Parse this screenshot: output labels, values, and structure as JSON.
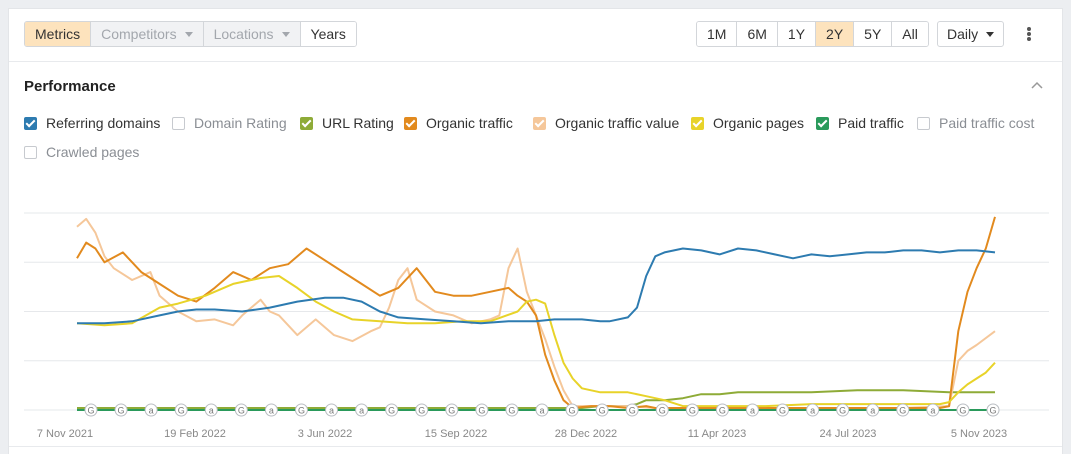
{
  "toolbar": {
    "tabs": [
      {
        "label": "Metrics",
        "state": "active",
        "caret": false
      },
      {
        "label": "Competitors",
        "state": "disabled",
        "caret": true
      },
      {
        "label": "Locations",
        "state": "disabled",
        "caret": true
      },
      {
        "label": "Years",
        "state": "normal",
        "caret": false
      }
    ],
    "ranges": [
      {
        "label": "1M",
        "active": false
      },
      {
        "label": "6M",
        "active": false
      },
      {
        "label": "1Y",
        "active": false
      },
      {
        "label": "2Y",
        "active": true
      },
      {
        "label": "5Y",
        "active": false
      },
      {
        "label": "All",
        "active": false
      }
    ],
    "interval": "Daily"
  },
  "section": {
    "title": "Performance"
  },
  "legend": [
    {
      "label": "Referring domains",
      "checked": true,
      "color": "#2d7bb0"
    },
    {
      "label": "Domain Rating",
      "checked": false,
      "color": "#c7cacf"
    },
    {
      "label": "URL Rating",
      "checked": true,
      "color": "#8eab37"
    },
    {
      "label": "Organic traffic",
      "checked": true,
      "color": "#e28a1e"
    },
    {
      "label": "Organic traffic value",
      "checked": true,
      "color": "#f5c79a"
    },
    {
      "label": "Organic pages",
      "checked": true,
      "color": "#e8d329"
    },
    {
      "label": "Paid traffic",
      "checked": true,
      "color": "#2a9a5b"
    },
    {
      "label": "Paid traffic cost",
      "checked": false,
      "color": "#c7cacf"
    },
    {
      "label": "Crawled pages",
      "checked": false,
      "color": "#c7cacf"
    }
  ],
  "chart_data": {
    "type": "line",
    "x_ticks": [
      "7 Nov 2021",
      "19 Feb 2022",
      "3 Jun 2022",
      "15 Sep 2022",
      "28 Dec 2022",
      "11 Apr 2023",
      "24 Jul 2023",
      "5 Nov 2023"
    ],
    "y_range": [
      0,
      100
    ],
    "grid": true,
    "series": [
      {
        "name": "Referring domains",
        "color": "#2d7bb0",
        "values": [
          [
            0,
            44
          ],
          [
            3,
            44
          ],
          [
            6,
            45
          ],
          [
            9,
            48
          ],
          [
            11,
            50
          ],
          [
            13,
            51
          ],
          [
            15,
            51
          ],
          [
            18,
            50
          ],
          [
            21,
            52
          ],
          [
            24,
            55
          ],
          [
            27,
            57
          ],
          [
            29,
            57
          ],
          [
            31,
            55
          ],
          [
            33,
            50
          ],
          [
            35,
            47
          ],
          [
            38,
            46
          ],
          [
            41,
            45
          ],
          [
            44,
            44
          ],
          [
            47,
            45
          ],
          [
            50,
            45
          ],
          [
            52,
            46
          ],
          [
            55,
            46
          ],
          [
            57,
            45
          ],
          [
            58,
            45
          ],
          [
            60,
            47
          ],
          [
            61,
            52
          ],
          [
            62,
            68
          ],
          [
            63,
            78
          ],
          [
            64,
            80
          ],
          [
            66,
            82
          ],
          [
            68,
            81
          ],
          [
            70,
            79
          ],
          [
            72,
            82
          ],
          [
            74,
            81
          ],
          [
            76,
            79
          ],
          [
            78,
            77
          ],
          [
            80,
            79
          ],
          [
            82,
            78
          ],
          [
            84,
            79
          ],
          [
            86,
            80
          ],
          [
            88,
            80
          ],
          [
            90,
            81
          ],
          [
            92,
            81
          ],
          [
            94,
            80
          ],
          [
            96,
            81
          ],
          [
            98,
            81
          ],
          [
            100,
            80
          ]
        ]
      },
      {
        "name": "URL Rating",
        "color": "#8eab37",
        "values": [
          [
            0,
            1
          ],
          [
            20,
            1
          ],
          [
            40,
            1
          ],
          [
            50,
            1
          ],
          [
            55,
            1
          ],
          [
            57,
            2
          ],
          [
            60,
            2
          ],
          [
            61,
            3
          ],
          [
            62,
            5
          ],
          [
            64,
            5
          ],
          [
            66,
            6
          ],
          [
            68,
            8
          ],
          [
            70,
            8
          ],
          [
            72,
            9
          ],
          [
            75,
            9
          ],
          [
            80,
            9
          ],
          [
            85,
            10
          ],
          [
            90,
            10
          ],
          [
            95,
            9
          ],
          [
            100,
            9
          ]
        ]
      },
      {
        "name": "Organic traffic",
        "color": "#e28a1e",
        "values": [
          [
            0,
            77
          ],
          [
            1,
            85
          ],
          [
            2,
            82
          ],
          [
            3,
            75
          ],
          [
            5,
            80
          ],
          [
            7,
            70
          ],
          [
            9,
            64
          ],
          [
            11,
            58
          ],
          [
            13,
            55
          ],
          [
            15,
            62
          ],
          [
            17,
            70
          ],
          [
            19,
            66
          ],
          [
            21,
            72
          ],
          [
            23,
            74
          ],
          [
            25,
            82
          ],
          [
            27,
            76
          ],
          [
            29,
            70
          ],
          [
            31,
            64
          ],
          [
            33,
            58
          ],
          [
            35,
            62
          ],
          [
            37,
            72
          ],
          [
            39,
            60
          ],
          [
            41,
            58
          ],
          [
            43,
            58
          ],
          [
            45,
            60
          ],
          [
            47,
            62
          ],
          [
            48,
            58
          ],
          [
            49,
            55
          ],
          [
            50,
            48
          ],
          [
            51,
            28
          ],
          [
            52,
            15
          ],
          [
            53,
            5
          ],
          [
            54,
            1
          ],
          [
            56,
            2
          ],
          [
            58,
            2
          ],
          [
            60,
            1
          ],
          [
            62,
            2
          ],
          [
            63,
            1
          ],
          [
            64,
            1
          ],
          [
            70,
            1
          ],
          [
            80,
            1
          ],
          [
            90,
            1
          ],
          [
            94,
            1
          ],
          [
            95,
            2
          ],
          [
            96,
            40
          ],
          [
            97,
            60
          ],
          [
            98,
            72
          ],
          [
            99,
            82
          ],
          [
            100,
            98
          ]
        ]
      },
      {
        "name": "Organic traffic value",
        "color": "#f5c79a",
        "values": [
          [
            0,
            93
          ],
          [
            1,
            97
          ],
          [
            2,
            90
          ],
          [
            3,
            78
          ],
          [
            4,
            72
          ],
          [
            6,
            66
          ],
          [
            8,
            70
          ],
          [
            9,
            58
          ],
          [
            11,
            50
          ],
          [
            13,
            45
          ],
          [
            15,
            46
          ],
          [
            17,
            43
          ],
          [
            18,
            48
          ],
          [
            20,
            56
          ],
          [
            21,
            50
          ],
          [
            22,
            48
          ],
          [
            24,
            38
          ],
          [
            26,
            46
          ],
          [
            28,
            38
          ],
          [
            30,
            35
          ],
          [
            32,
            40
          ],
          [
            33,
            42
          ],
          [
            34,
            52
          ],
          [
            35,
            66
          ],
          [
            36,
            72
          ],
          [
            37,
            56
          ],
          [
            39,
            50
          ],
          [
            41,
            48
          ],
          [
            43,
            44
          ],
          [
            45,
            46
          ],
          [
            46,
            48
          ],
          [
            47,
            72
          ],
          [
            48,
            82
          ],
          [
            49,
            60
          ],
          [
            50,
            48
          ],
          [
            51,
            36
          ],
          [
            52,
            22
          ],
          [
            53,
            10
          ],
          [
            54,
            2
          ],
          [
            60,
            2
          ],
          [
            63,
            1
          ],
          [
            70,
            1
          ],
          [
            80,
            1
          ],
          [
            90,
            1
          ],
          [
            95,
            2
          ],
          [
            96,
            25
          ],
          [
            97,
            30
          ],
          [
            98,
            33
          ],
          [
            100,
            40
          ]
        ]
      },
      {
        "name": "Organic pages",
        "color": "#e8d329",
        "values": [
          [
            0,
            44
          ],
          [
            3,
            43
          ],
          [
            6,
            44
          ],
          [
            9,
            52
          ],
          [
            11,
            54
          ],
          [
            14,
            58
          ],
          [
            17,
            64
          ],
          [
            20,
            67
          ],
          [
            22,
            68
          ],
          [
            24,
            62
          ],
          [
            26,
            55
          ],
          [
            28,
            50
          ],
          [
            30,
            46
          ],
          [
            33,
            45
          ],
          [
            36,
            44
          ],
          [
            39,
            44
          ],
          [
            42,
            45
          ],
          [
            45,
            45
          ],
          [
            48,
            50
          ],
          [
            49,
            55
          ],
          [
            50,
            56
          ],
          [
            51,
            54
          ],
          [
            52,
            38
          ],
          [
            53,
            24
          ],
          [
            54,
            16
          ],
          [
            55,
            11
          ],
          [
            57,
            9
          ],
          [
            60,
            9
          ],
          [
            62,
            7
          ],
          [
            64,
            5
          ],
          [
            66,
            2
          ],
          [
            70,
            2
          ],
          [
            75,
            2
          ],
          [
            80,
            3
          ],
          [
            85,
            3
          ],
          [
            90,
            3
          ],
          [
            94,
            3
          ],
          [
            95,
            4
          ],
          [
            96,
            9
          ],
          [
            97,
            13
          ],
          [
            98,
            16
          ],
          [
            99,
            19
          ],
          [
            100,
            24
          ]
        ]
      },
      {
        "name": "Paid traffic",
        "color": "#2a9a5b",
        "values": [
          [
            0,
            0
          ],
          [
            25,
            0
          ],
          [
            50,
            0
          ],
          [
            75,
            0
          ],
          [
            100,
            0
          ]
        ]
      }
    ],
    "annotations": [
      "G",
      "G",
      "a",
      "G",
      "a",
      "G",
      "a",
      "G",
      "a",
      "a",
      "G",
      "G",
      "G",
      "G",
      "G",
      "a",
      "G",
      "G",
      "G",
      "G",
      "G",
      "G",
      "a",
      "G",
      "a",
      "G",
      "a",
      "G",
      "a",
      "G",
      "G"
    ]
  }
}
